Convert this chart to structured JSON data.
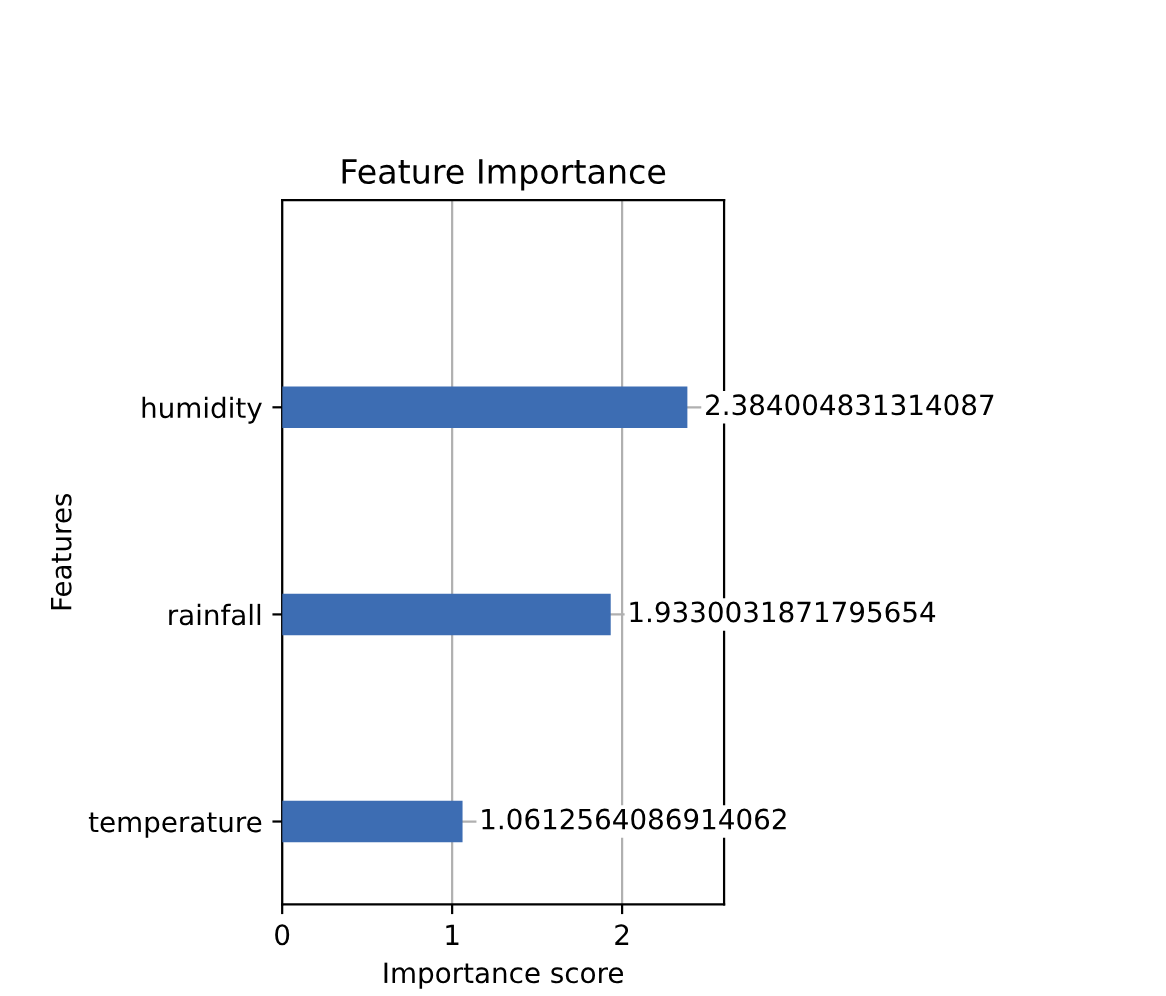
{
  "chart_data": {
    "type": "bar",
    "orientation": "horizontal",
    "title": "Feature Importance",
    "xlabel": "Importance score",
    "ylabel": "Features",
    "categories": [
      "humidity",
      "rainfall",
      "temperature"
    ],
    "values": [
      2.384004831314087,
      1.9330031871795654,
      1.0612564086914062
    ],
    "color": "#3d6db3",
    "xlim": [
      0,
      2.6
    ],
    "xticks": [
      0,
      1,
      2
    ],
    "grid": true,
    "data_labels": true
  }
}
